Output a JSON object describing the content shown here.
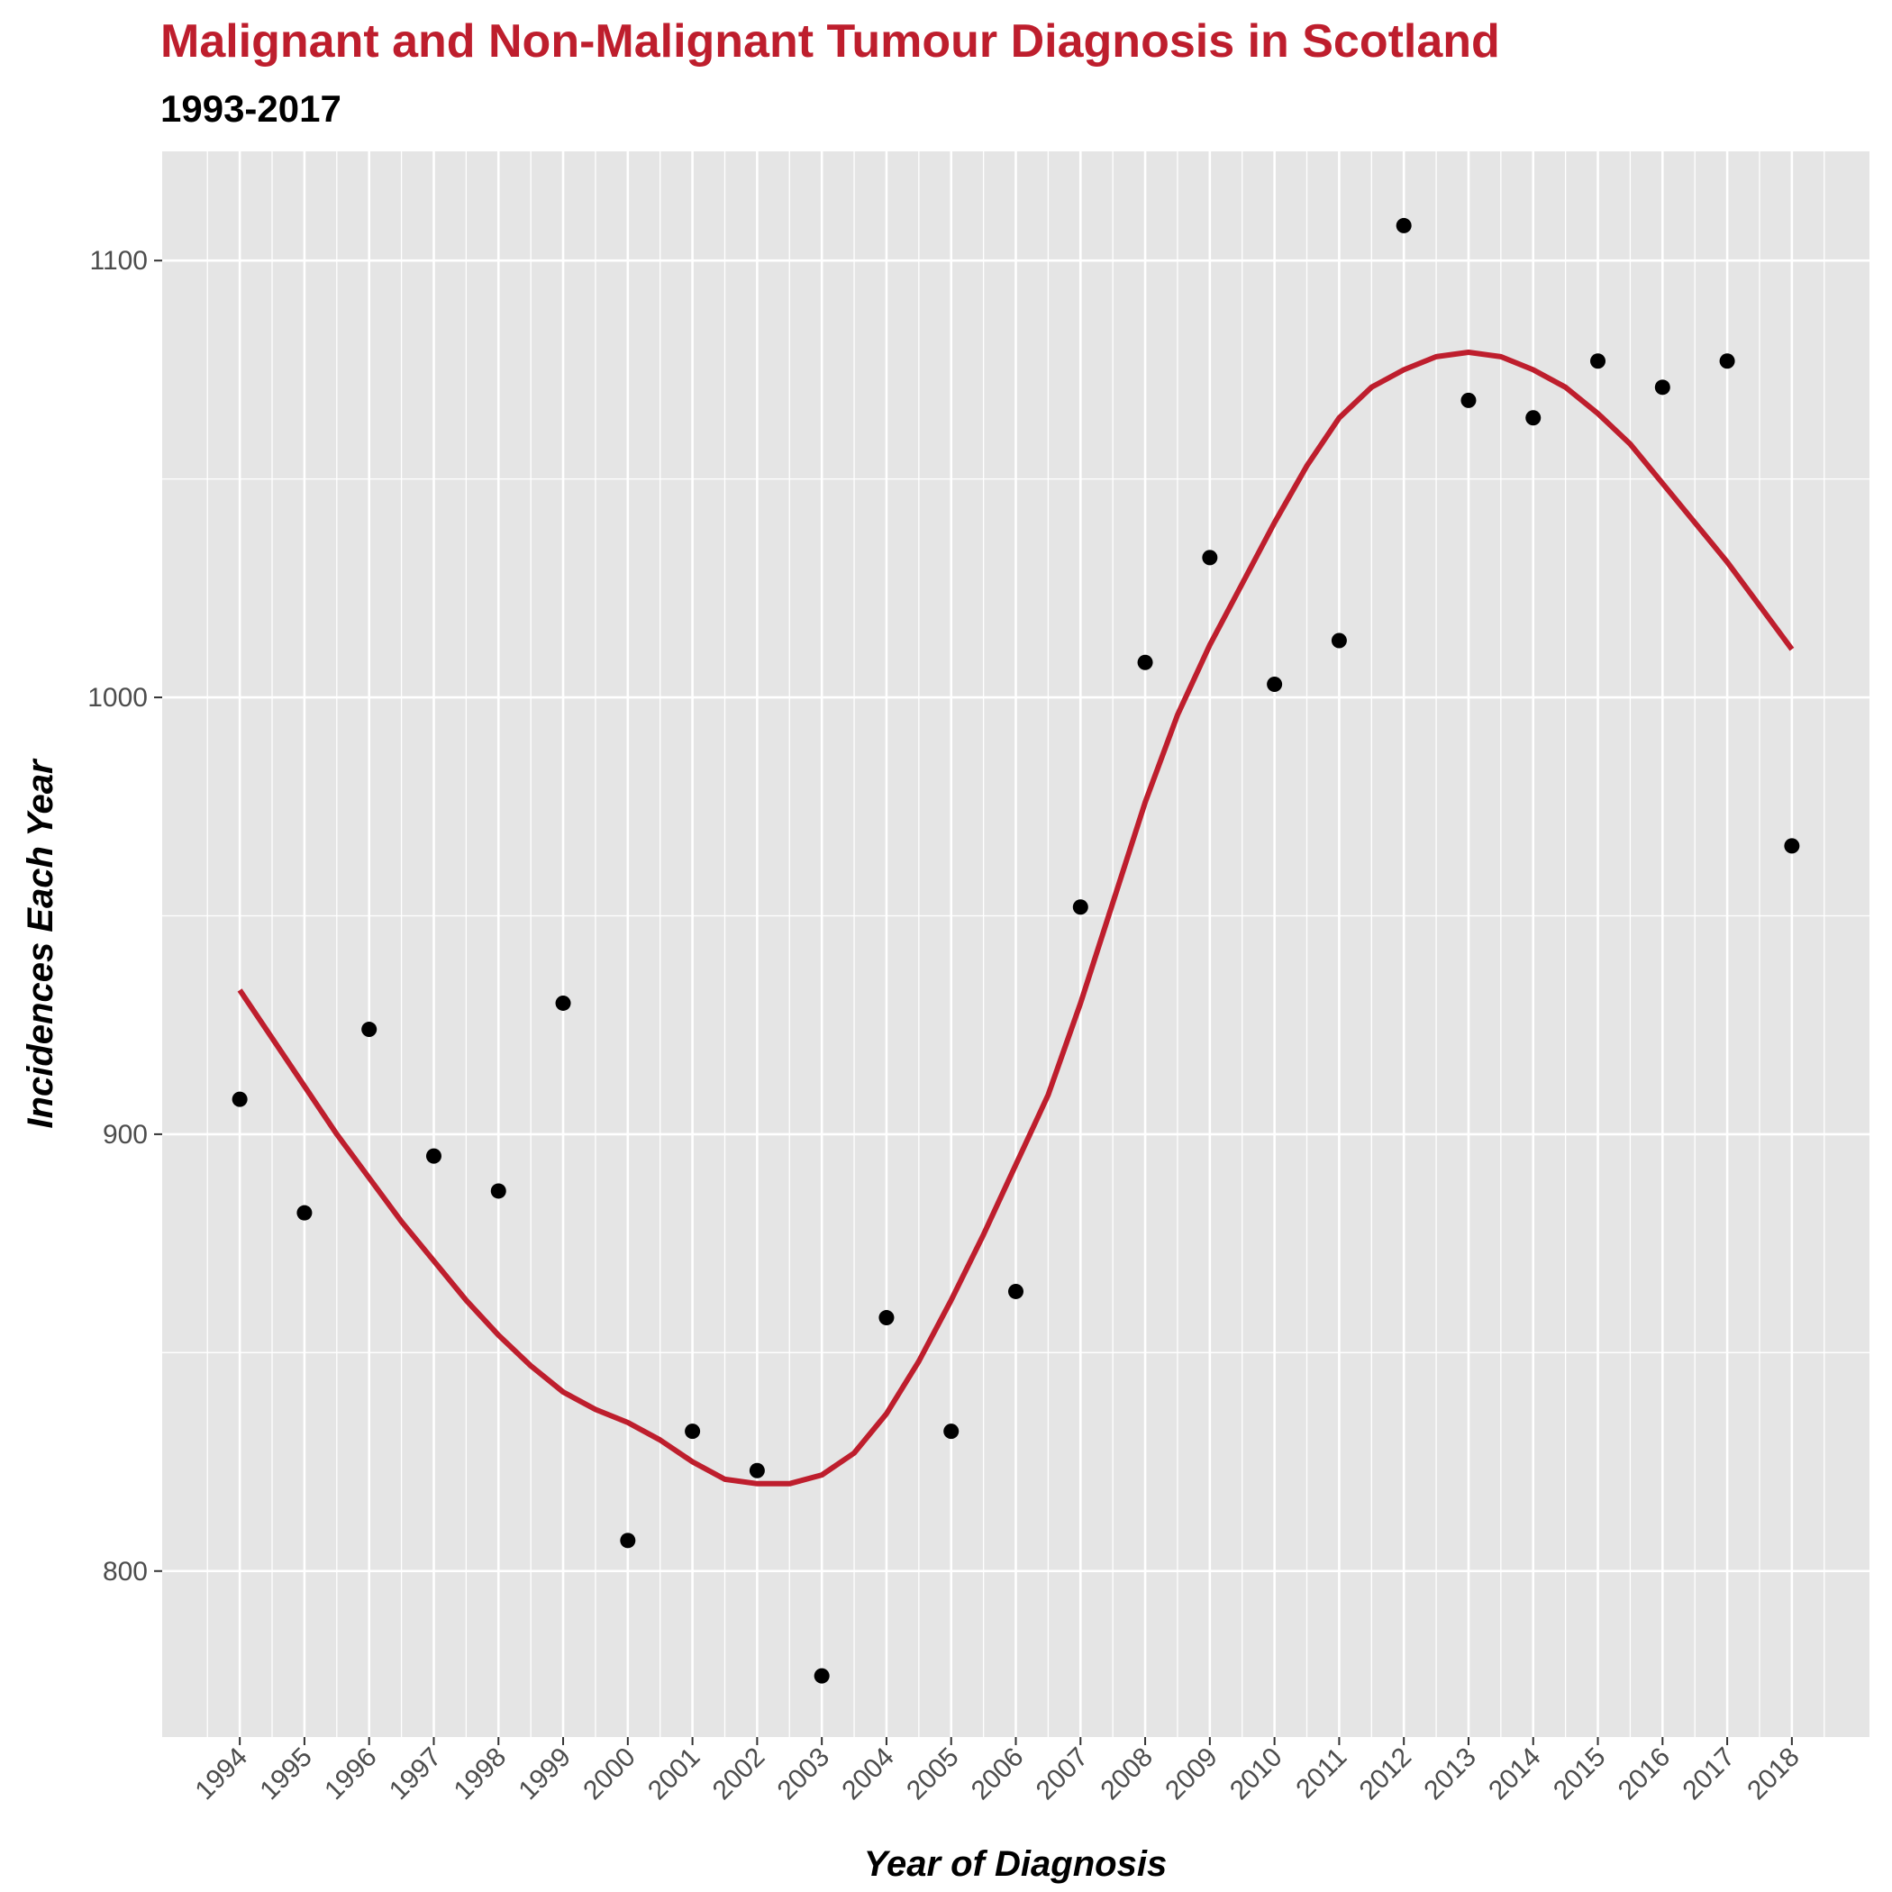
{
  "colors": {
    "title": "#be1e2d",
    "subtitle": "#000000",
    "panel_background": "#e5e5e5",
    "grid": "#ffffff",
    "points": "#000000",
    "trend_line": "#be1e2d"
  },
  "chart_data": {
    "type": "scatter",
    "title": "Malignant and Non-Malignant Tumour Diagnosis in Scotland",
    "subtitle": "1993-2017",
    "xlabel": "Year of Diagnosis",
    "ylabel": "Incidences Each Year",
    "x_ticks": [
      "1994",
      "1995",
      "1996",
      "1997",
      "1998",
      "1999",
      "2000",
      "2001",
      "2002",
      "2003",
      "2004",
      "2005",
      "2006",
      "2007",
      "2008",
      "2009",
      "2010",
      "2011",
      "2012",
      "2013",
      "2014",
      "2015",
      "2016",
      "2017",
      "2018"
    ],
    "y_ticks": [
      800,
      900,
      1000,
      1100
    ],
    "xlim": [
      1992.8,
      2019.2
    ],
    "ylim": [
      762,
      1125
    ],
    "grid": true,
    "legend": "none",
    "series": [
      {
        "type": "scatter",
        "x": [
          1994,
          1995,
          1996,
          1997,
          1998,
          1999,
          2000,
          2001,
          2002,
          2003,
          2004,
          2005,
          2006,
          2007,
          2008,
          2009,
          2010,
          2011,
          2012,
          2013,
          2014,
          2015,
          2016,
          2017,
          2018
        ],
        "y": [
          908,
          882,
          924,
          895,
          887,
          930,
          807,
          832,
          823,
          776,
          858,
          832,
          864,
          952,
          1008,
          1032,
          1003,
          1013,
          1108,
          1068,
          1064,
          1077,
          1071,
          1077,
          966
        ]
      },
      {
        "type": "line",
        "x": [
          1994,
          1994.5,
          1995,
          1995.5,
          1996,
          1996.5,
          1997,
          1997.5,
          1998,
          1998.5,
          1999,
          1999.5,
          2000,
          2000.5,
          2001,
          2001.5,
          2002,
          2002.5,
          2003,
          2003.5,
          2004,
          2004.5,
          2005,
          2005.5,
          2006,
          2006.5,
          2007,
          2007.5,
          2008,
          2008.5,
          2009,
          2009.5,
          2010,
          2010.5,
          2011,
          2011.5,
          2012,
          2012.5,
          2013,
          2013.5,
          2014,
          2014.5,
          2015,
          2015.5,
          2016,
          2016.5,
          2017,
          2017.5,
          2018
        ],
        "y": [
          933,
          922,
          911,
          900,
          890,
          880,
          871,
          862,
          854,
          847,
          841,
          837,
          834,
          830,
          825,
          821,
          820,
          820,
          822,
          827,
          836,
          848,
          862,
          877,
          893,
          909,
          930,
          953,
          976,
          996,
          1012,
          1026,
          1040,
          1053,
          1064,
          1071,
          1075,
          1078,
          1079,
          1078,
          1075,
          1071,
          1065,
          1058,
          1049,
          1040,
          1031,
          1021,
          1011
        ]
      }
    ]
  }
}
